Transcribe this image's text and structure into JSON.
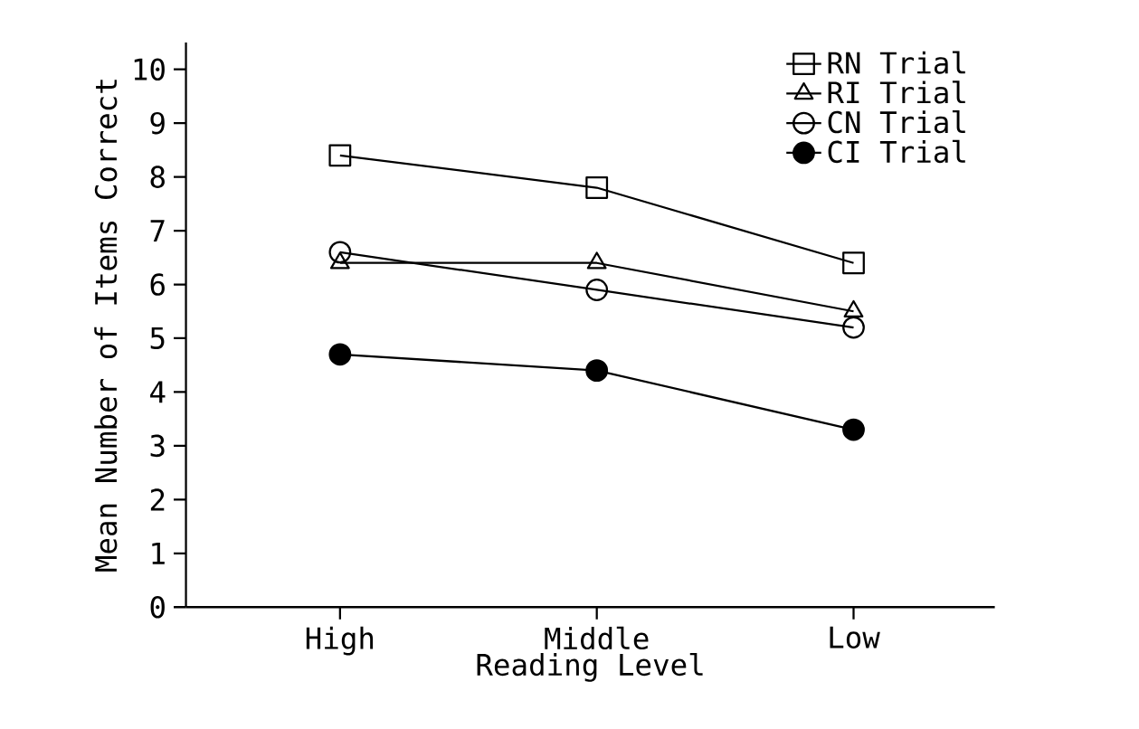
{
  "chart_data": {
    "type": "line",
    "xlabel": "Reading Level",
    "ylabel": "Mean Number of Items Correct",
    "categories": [
      "High",
      "Middle",
      "Low"
    ],
    "series": [
      {
        "name": "RN Trial",
        "color": "#000000",
        "marker": "square",
        "values": [
          8.4,
          7.8,
          6.4
        ]
      },
      {
        "name": "RI Trial",
        "color": "#000000",
        "marker": "triangle",
        "values": [
          6.4,
          6.4,
          5.5
        ]
      },
      {
        "name": "CN Trial",
        "color": "#000000",
        "marker": "circle",
        "values": [
          6.6,
          5.9,
          5.2
        ]
      },
      {
        "name": "CI Trial",
        "color": "#000000",
        "marker": "filled circle",
        "values": [
          4.7,
          4.4,
          3.3
        ]
      }
    ],
    "ylim": [
      0,
      10.5
    ],
    "yticks": [
      0,
      1,
      2,
      3,
      4,
      5,
      6,
      7,
      8,
      9,
      10
    ],
    "grid": false,
    "legend": "top right",
    "line_style": "solid"
  }
}
